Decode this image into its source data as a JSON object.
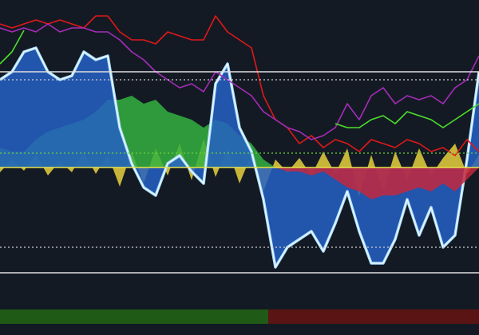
{
  "chart_data": {
    "type": "area",
    "x": [
      0,
      15,
      30,
      45,
      60,
      75,
      90,
      105,
      120,
      135,
      150,
      165,
      180,
      195,
      210,
      225,
      240,
      255,
      270,
      285,
      300,
      315,
      330,
      345,
      360,
      375,
      390,
      405,
      420,
      435,
      450,
      465,
      480,
      495,
      510,
      525,
      540,
      555,
      570,
      585,
      600
    ],
    "xlim": [
      0,
      600
    ],
    "ylim": [
      -90,
      105
    ],
    "series": [
      {
        "kind": "area",
        "color": "#e6d13e",
        "values": [
          -3,
          5,
          -2,
          8,
          -5,
          4,
          -3,
          10,
          -4,
          8,
          -12,
          10,
          -10,
          12,
          -5,
          15,
          -8,
          18,
          -6,
          12,
          -10,
          8,
          -15,
          5,
          -3,
          6,
          -5,
          10,
          -4,
          12,
          -18,
          8,
          -15,
          10,
          -8,
          12,
          -5,
          6,
          15,
          -4,
          8
        ]
      },
      {
        "kind": "area",
        "color": "#33b13f",
        "values": [
          12.5,
          10,
          10,
          17.5,
          22.5,
          25,
          27.5,
          30,
          35,
          42.5,
          42.5,
          45,
          40,
          42.5,
          35,
          32.5,
          30,
          25,
          30,
          27.5,
          20,
          15,
          5,
          0,
          0,
          0,
          0,
          0,
          0,
          0,
          0,
          0,
          0,
          0,
          0,
          0,
          0,
          0,
          0,
          0,
          0
        ]
      },
      {
        "kind": "area",
        "color": "#2560c4",
        "line": "#a8dcff",
        "values": [
          55,
          60,
          72.5,
          75,
          60,
          55,
          57.5,
          72.5,
          67.5,
          70,
          25,
          2.5,
          -12.5,
          -17.5,
          2.5,
          7.5,
          -2.5,
          -10,
          52.5,
          65,
          25,
          10,
          -20,
          -62.5,
          -50,
          -45,
          -40,
          -52.5,
          -35,
          -15,
          -40,
          -60,
          -60,
          -45,
          -20,
          -42.5,
          -25,
          -50,
          -42.5,
          5,
          60
        ]
      },
      {
        "kind": "area",
        "color": "#c4283e",
        "values": [
          0,
          0,
          0,
          0,
          0,
          0,
          0,
          0,
          0,
          0,
          0,
          0,
          0,
          0,
          0,
          0,
          0,
          0,
          0,
          0,
          0,
          0,
          0,
          0,
          -2.5,
          -2.5,
          -5,
          -2.5,
          -7.5,
          -12.5,
          -15,
          -20,
          -17.5,
          -17.5,
          -15,
          -12.5,
          -15,
          -10,
          -15,
          -7.5,
          0
        ]
      },
      {
        "kind": "line",
        "color": "#e01818",
        "values": [
          90,
          87.5,
          90,
          92.5,
          90,
          92.5,
          90,
          87.5,
          95,
          95,
          85,
          80,
          80,
          77.5,
          85,
          82.5,
          80,
          80,
          95,
          85,
          80,
          75,
          45,
          30,
          25,
          15,
          20,
          12.5,
          17.5,
          15,
          10,
          17.5,
          15,
          12.5,
          17.5,
          15,
          10,
          12.5,
          7.5,
          17.5,
          10
        ]
      },
      {
        "kind": "line",
        "color": "#a52cb8",
        "values": [
          87.5,
          85,
          87.5,
          85,
          90,
          85,
          87.5,
          87.5,
          85,
          85,
          80,
          72.5,
          67.5,
          60,
          55,
          50,
          52.5,
          47.5,
          60,
          55,
          50,
          45,
          35,
          30,
          25,
          22.5,
          17.5,
          20,
          25,
          40,
          30,
          45,
          50,
          40,
          45,
          42.5,
          45,
          40,
          50,
          55,
          70
        ]
      },
      {
        "kind": "line",
        "color": "#4ce02a",
        "values": [
          65,
          72.5,
          86,
          null,
          null,
          null,
          null,
          null,
          null,
          null,
          null,
          null,
          null,
          null,
          null,
          null,
          null,
          null,
          null,
          null,
          null,
          null,
          null,
          null,
          null,
          null,
          null,
          null,
          27.5,
          25,
          25,
          30,
          32.5,
          27.5,
          35,
          32.5,
          30,
          25,
          30,
          35,
          40
        ]
      }
    ],
    "hlines": [
      {
        "value": 60,
        "color": "#e0e0e0",
        "dashed": false
      },
      {
        "value": 55,
        "color": "#d0d0d0",
        "dashed": true
      },
      {
        "value": 9,
        "color": "#6fd23a",
        "dashed": true
      },
      {
        "value": 0,
        "color": "#e6e24a",
        "dashed": false
      },
      {
        "value": -50,
        "color": "#d0d0d0",
        "dashed": true
      },
      {
        "value": -66,
        "color": "#e0e0e0",
        "dashed": false
      }
    ]
  }
}
